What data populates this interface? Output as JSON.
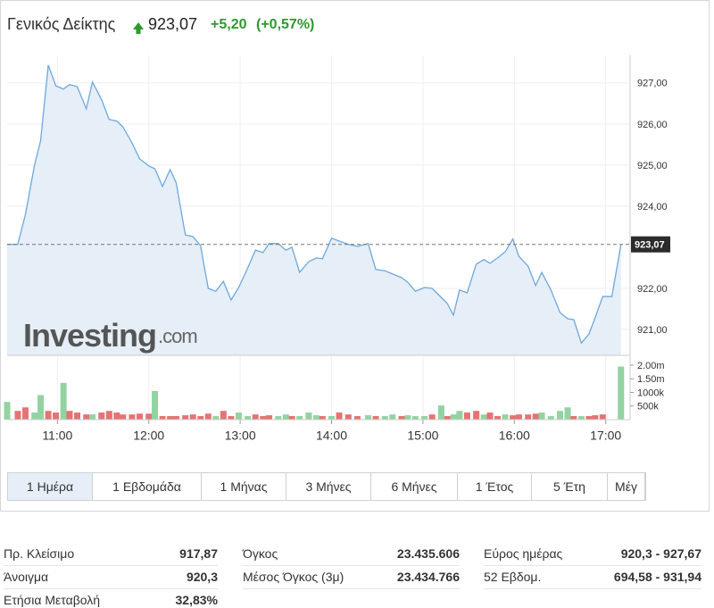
{
  "header": {
    "title": "Γενικός Δείκτης",
    "price": "923,07",
    "change": "+5,20",
    "change_pct": "(+0,57%)"
  },
  "logo": {
    "name": "Investing",
    "suffix": ".com"
  },
  "chart_data": [
    {
      "type": "line",
      "color": "#6fa8dc",
      "fill": "#e6eef7",
      "x": [
        627,
        634,
        639,
        645,
        649,
        654,
        659,
        664,
        668,
        673,
        679,
        683,
        689,
        694,
        699,
        703,
        709,
        714,
        720,
        724,
        729,
        734,
        738,
        744,
        749,
        754,
        759,
        764,
        769,
        774,
        779,
        785,
        790,
        795,
        799,
        805,
        810,
        814,
        819,
        825,
        830,
        834,
        840,
        845,
        851,
        857,
        864,
        869,
        875,
        880,
        886,
        890,
        895,
        901,
        906,
        912,
        916,
        920,
        924,
        929,
        935,
        940,
        944,
        949,
        954,
        959,
        963,
        969,
        974,
        978,
        984,
        990,
        995,
        999,
        1004,
        1009,
        1013,
        1018,
        1024,
        1030
      ],
      "values": [
        923.07,
        923.07,
        923.8,
        925.0,
        925.59,
        927.43,
        926.93,
        926.85,
        926.96,
        926.91,
        926.37,
        927.02,
        926.59,
        926.11,
        926.07,
        925.93,
        925.54,
        925.15,
        924.98,
        924.91,
        924.48,
        924.89,
        924.57,
        923.3,
        923.26,
        923.04,
        922.0,
        921.93,
        922.17,
        921.72,
        922.02,
        922.5,
        922.93,
        922.87,
        923.09,
        923.09,
        922.93,
        923.0,
        922.39,
        922.65,
        922.74,
        922.72,
        923.22,
        923.15,
        923.07,
        923.02,
        923.09,
        922.46,
        922.43,
        922.35,
        922.26,
        922.15,
        921.93,
        922.02,
        922.0,
        921.78,
        921.63,
        921.35,
        921.96,
        921.89,
        922.59,
        922.7,
        922.61,
        922.74,
        922.89,
        923.2,
        922.78,
        922.54,
        922.07,
        922.39,
        921.96,
        921.41,
        921.26,
        921.24,
        920.67,
        920.89,
        921.28,
        921.8,
        921.8,
        923.07
      ],
      "xlim": [
        627,
        1036
      ],
      "xticks": [
        {
          "value": 660,
          "label": "11:00"
        },
        {
          "value": 720,
          "label": "12:00"
        },
        {
          "value": 780,
          "label": "13:00"
        },
        {
          "value": 840,
          "label": "14:00"
        },
        {
          "value": 900,
          "label": "15:00"
        },
        {
          "value": 960,
          "label": "16:00"
        },
        {
          "value": 1020,
          "label": "17:00"
        }
      ],
      "ylim": [
        920.37,
        927.67
      ],
      "yticks": [
        {
          "value": 921,
          "label": "921,00"
        },
        {
          "value": 922,
          "label": "922,00"
        },
        {
          "value": 924,
          "label": "924,00"
        },
        {
          "value": 925,
          "label": "925,00"
        },
        {
          "value": 926,
          "label": "926,00"
        },
        {
          "value": 927,
          "label": "927,00"
        }
      ],
      "reference": {
        "value": 923.07,
        "label": "923,07"
      },
      "grid": true
    },
    {
      "type": "bar",
      "x": [
        627,
        634,
        639,
        645,
        649,
        654,
        659,
        664,
        668,
        673,
        679,
        683,
        689,
        694,
        699,
        703,
        709,
        714,
        720,
        724,
        729,
        734,
        738,
        744,
        749,
        754,
        759,
        764,
        769,
        774,
        779,
        785,
        790,
        795,
        799,
        805,
        810,
        814,
        819,
        825,
        830,
        834,
        840,
        845,
        851,
        857,
        864,
        869,
        875,
        880,
        886,
        890,
        895,
        901,
        906,
        912,
        916,
        920,
        924,
        929,
        935,
        940,
        944,
        949,
        954,
        959,
        963,
        969,
        974,
        978,
        984,
        990,
        995,
        999,
        1004,
        1009,
        1013,
        1018,
        1030
      ],
      "values": [
        650000,
        320000,
        450000,
        260000,
        900000,
        320000,
        260000,
        1350000,
        320000,
        260000,
        190000,
        190000,
        260000,
        320000,
        260000,
        190000,
        190000,
        220000,
        220000,
        1050000,
        130000,
        130000,
        130000,
        160000,
        190000,
        130000,
        220000,
        130000,
        320000,
        130000,
        260000,
        130000,
        190000,
        130000,
        160000,
        130000,
        190000,
        130000,
        130000,
        260000,
        160000,
        130000,
        130000,
        260000,
        190000,
        130000,
        160000,
        130000,
        130000,
        190000,
        130000,
        160000,
        130000,
        130000,
        190000,
        520000,
        130000,
        190000,
        320000,
        260000,
        320000,
        190000,
        260000,
        130000,
        190000,
        160000,
        190000,
        190000,
        220000,
        260000,
        130000,
        320000,
        450000,
        130000,
        130000,
        130000,
        160000,
        190000,
        1950000
      ],
      "colors": [
        "#93d3a2",
        "#e57373",
        "#e57373",
        "#93d3a2",
        "#93d3a2",
        "#e57373",
        "#e57373",
        "#93d3a2",
        "#e57373",
        "#e57373",
        "#e57373",
        "#93d3a2",
        "#e57373",
        "#e57373",
        "#e57373",
        "#e57373",
        "#e57373",
        "#e57373",
        "#e57373",
        "#93d3a2",
        "#e57373",
        "#e57373",
        "#e57373",
        "#e57373",
        "#e57373",
        "#e57373",
        "#e57373",
        "#93d3a2",
        "#e57373",
        "#e57373",
        "#93d3a2",
        "#93d3a2",
        "#e57373",
        "#e57373",
        "#e57373",
        "#93d3a2",
        "#93d3a2",
        "#e57373",
        "#93d3a2",
        "#93d3a2",
        "#93d3a2",
        "#e57373",
        "#93d3a2",
        "#e57373",
        "#e57373",
        "#e57373",
        "#93d3a2",
        "#e57373",
        "#93d3a2",
        "#93d3a2",
        "#e57373",
        "#93d3a2",
        "#93d3a2",
        "#93d3a2",
        "#e57373",
        "#93d3a2",
        "#e57373",
        "#93d3a2",
        "#93d3a2",
        "#e57373",
        "#e57373",
        "#93d3a2",
        "#e57373",
        "#e57373",
        "#93d3a2",
        "#e57373",
        "#e57373",
        "#e57373",
        "#e57373",
        "#93d3a2",
        "#93d3a2",
        "#93d3a2",
        "#93d3a2",
        "#e57373",
        "#93d3a2",
        "#e57373",
        "#e57373",
        "#e57373",
        "#93d3a2"
      ],
      "xlim": [
        627,
        1036
      ],
      "ylim": [
        0,
        2230000
      ],
      "yticks": [
        {
          "value": 500000,
          "label": "500k"
        },
        {
          "value": 1000000,
          "label": "1000k"
        },
        {
          "value": 1500000,
          "label": "1.50m"
        },
        {
          "value": 2000000,
          "label": "2.00m"
        }
      ]
    }
  ],
  "tabs": [
    "1 Ημέρα",
    "1 Εβδομάδα",
    "1 Μήνας",
    "3 Μήνες",
    "6 Μήνες",
    "1 Έτος",
    "5 Έτη",
    "Μέγ"
  ],
  "stats": [
    [
      [
        "Πρ. Κλείσιμο",
        "917,87"
      ],
      [
        "Άνοιγμα",
        "920,3"
      ],
      [
        "Ετήσια Μεταβολή",
        "32,83%"
      ]
    ],
    [
      [
        "Όγκος",
        "23.435.606"
      ],
      [
        "Μέσος Όγκος (3μ)",
        "23.434.766"
      ]
    ],
    [
      [
        "Εύρος ημέρας",
        "920,3 - 927,67"
      ],
      [
        "52 Εβδομ.",
        "694,58 - 931,94"
      ]
    ]
  ]
}
